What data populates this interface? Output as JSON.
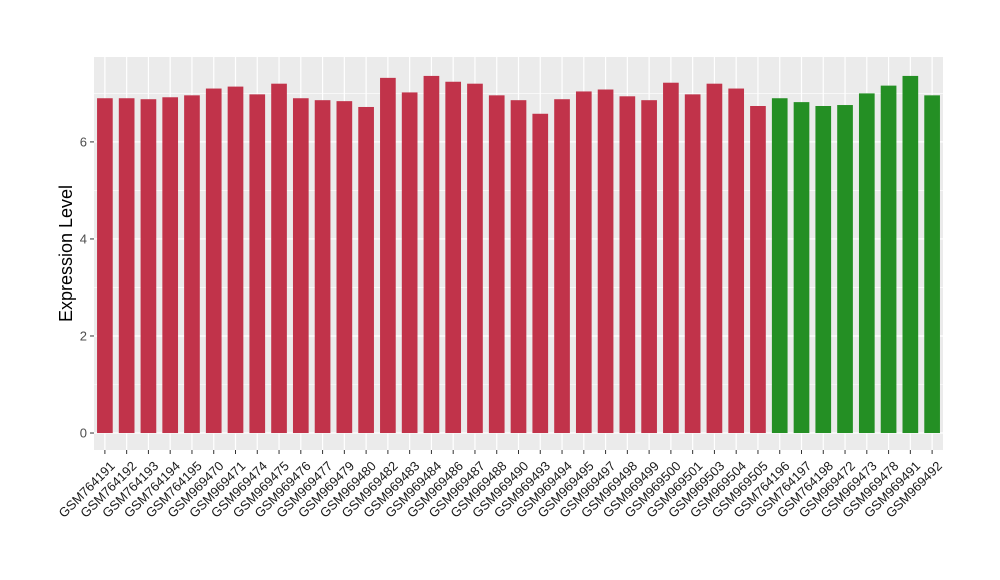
{
  "chart_data": {
    "type": "bar",
    "title": "",
    "xlabel": "",
    "ylabel": "Expression Level",
    "ylim": [
      -0.35,
      7.75
    ],
    "yticks": [
      0,
      2,
      4,
      6
    ],
    "grid": true,
    "legend": "none",
    "colors": {
      "group1": "#C1334A",
      "group2": "#248F24",
      "panel": "#EBEBEB",
      "grid": "#FFFFFF"
    },
    "categories": [
      "GSM764191",
      "GSM764192",
      "GSM764193",
      "GSM764194",
      "GSM764195",
      "GSM969470",
      "GSM969471",
      "GSM969474",
      "GSM969475",
      "GSM969476",
      "GSM969477",
      "GSM969479",
      "GSM969480",
      "GSM969482",
      "GSM969483",
      "GSM969484",
      "GSM969486",
      "GSM969487",
      "GSM969488",
      "GSM969490",
      "GSM969493",
      "GSM969494",
      "GSM969495",
      "GSM969497",
      "GSM969498",
      "GSM969499",
      "GSM969500",
      "GSM969501",
      "GSM969503",
      "GSM969504",
      "GSM969505",
      "GSM764196",
      "GSM764197",
      "GSM764198",
      "GSM969472",
      "GSM969473",
      "GSM969478",
      "GSM969491",
      "GSM969492"
    ],
    "values": [
      6.9,
      6.9,
      6.88,
      6.92,
      6.96,
      7.1,
      7.14,
      6.98,
      7.2,
      6.9,
      6.86,
      6.84,
      6.72,
      7.32,
      7.02,
      7.36,
      7.24,
      7.2,
      6.96,
      6.86,
      6.58,
      6.88,
      7.04,
      7.08,
      6.94,
      6.86,
      7.22,
      6.98,
      7.2,
      7.1,
      6.74,
      6.9,
      6.82,
      6.74,
      6.76,
      7.0,
      7.16,
      7.36,
      6.96
    ],
    "groups": [
      1,
      1,
      1,
      1,
      1,
      1,
      1,
      1,
      1,
      1,
      1,
      1,
      1,
      1,
      1,
      1,
      1,
      1,
      1,
      1,
      1,
      1,
      1,
      1,
      1,
      1,
      1,
      1,
      1,
      1,
      1,
      2,
      2,
      2,
      2,
      2,
      2,
      2,
      2
    ]
  }
}
